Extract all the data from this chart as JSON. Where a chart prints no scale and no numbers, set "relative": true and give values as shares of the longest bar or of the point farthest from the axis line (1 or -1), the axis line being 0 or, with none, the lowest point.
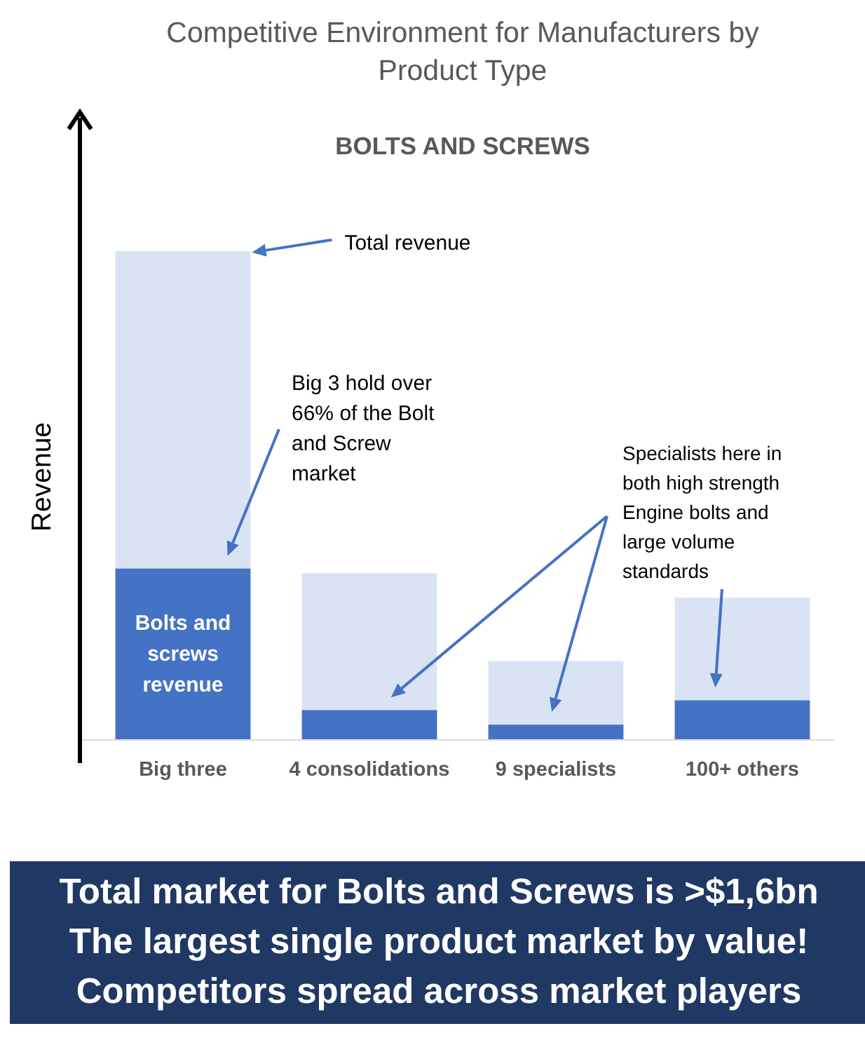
{
  "chart_data": {
    "type": "bar",
    "title": "Competitive Environment for Manufacturers by Product Type",
    "subtitle": "BOLTS AND SCREWS",
    "ylabel": "Revenue",
    "categories": [
      "Big three",
      "4 consolidations",
      "9 specialists",
      "100+ others"
    ],
    "series": [
      {
        "name": "Bolts and screws revenue",
        "color": "#4472c4",
        "values": [
          0.35,
          0.06,
          0.03,
          0.08
        ]
      },
      {
        "color": "#dae3f3",
        "values": [
          0.65,
          0.28,
          0.13,
          0.21
        ]
      }
    ],
    "stacked": true,
    "relative": true,
    "annotations": [
      "Total revenue",
      "Big 3 hold over 66% of the Bolt and Screw market",
      "Specialists here in both high strength Engine bolts and large volume standards",
      "Total market for Bolts and Screws is >$1,6bn",
      "The largest single product market by value!",
      "Competitors spread across market players"
    ]
  }
}
